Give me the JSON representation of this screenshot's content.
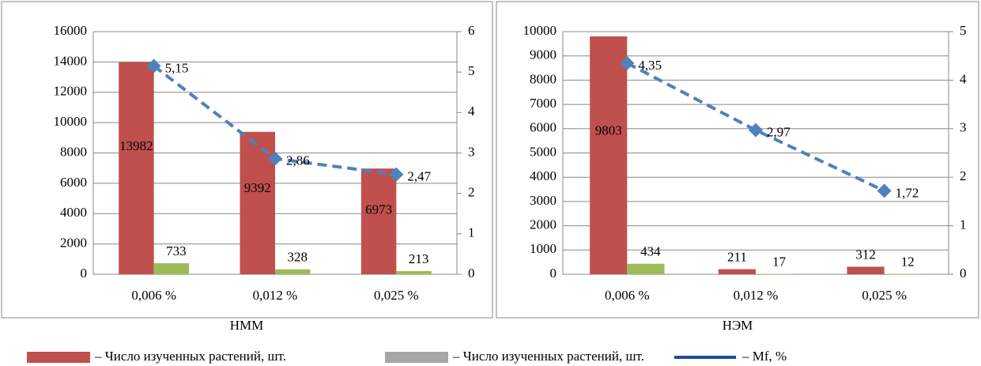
{
  "chart_data": [
    {
      "type": "bar",
      "title": "НММ",
      "categories": [
        "0,006 %",
        "0,012 %",
        "0,025 %"
      ],
      "series": [
        {
          "color": "#c0504d",
          "values": [
            13982,
            9392,
            6973
          ]
        },
        {
          "color": "#9bbb59",
          "values": [
            733,
            328,
            213
          ]
        },
        {
          "color": "#4f81bd",
          "axis": "y2",
          "kind": "line",
          "values": [
            5.15,
            2.86,
            2.47
          ],
          "value_labels": [
            "5,15",
            "2,86",
            "2,47"
          ]
        }
      ],
      "ylim": [
        0,
        16000
      ],
      "yticks": [
        0,
        2000,
        4000,
        6000,
        8000,
        10000,
        12000,
        14000,
        16000
      ],
      "y2lim": [
        0,
        6
      ],
      "y2ticks": [
        0,
        1,
        2,
        3,
        4,
        5,
        6
      ]
    },
    {
      "type": "bar",
      "title": "НЭМ",
      "categories": [
        "0,006 %",
        "0,012 %",
        "0,025 %"
      ],
      "series": [
        {
          "color": "#c0504d",
          "values": [
            9803,
            211,
            312
          ]
        },
        {
          "color": "#9bbb59",
          "values": [
            434,
            17,
            12
          ]
        },
        {
          "color": "#4f81bd",
          "axis": "y2",
          "kind": "line",
          "values": [
            4.35,
            2.97,
            1.72
          ],
          "value_labels": [
            "4,35",
            "2,97",
            "1,72"
          ]
        }
      ],
      "ylim": [
        0,
        10000
      ],
      "yticks": [
        0,
        1000,
        2000,
        3000,
        4000,
        5000,
        6000,
        7000,
        8000,
        9000,
        10000
      ],
      "y2lim": [
        0,
        5
      ],
      "y2ticks": [
        0,
        1,
        2,
        3,
        4,
        5
      ]
    }
  ],
  "legend": [
    {
      "label": "– Число изученных растений, шт.",
      "color": "#c0504d"
    },
    {
      "label": "– Число изученных растений, шт.",
      "color": "#a6a6a6"
    },
    {
      "label": "– Mf, %",
      "color": "#1f4e9a"
    }
  ]
}
